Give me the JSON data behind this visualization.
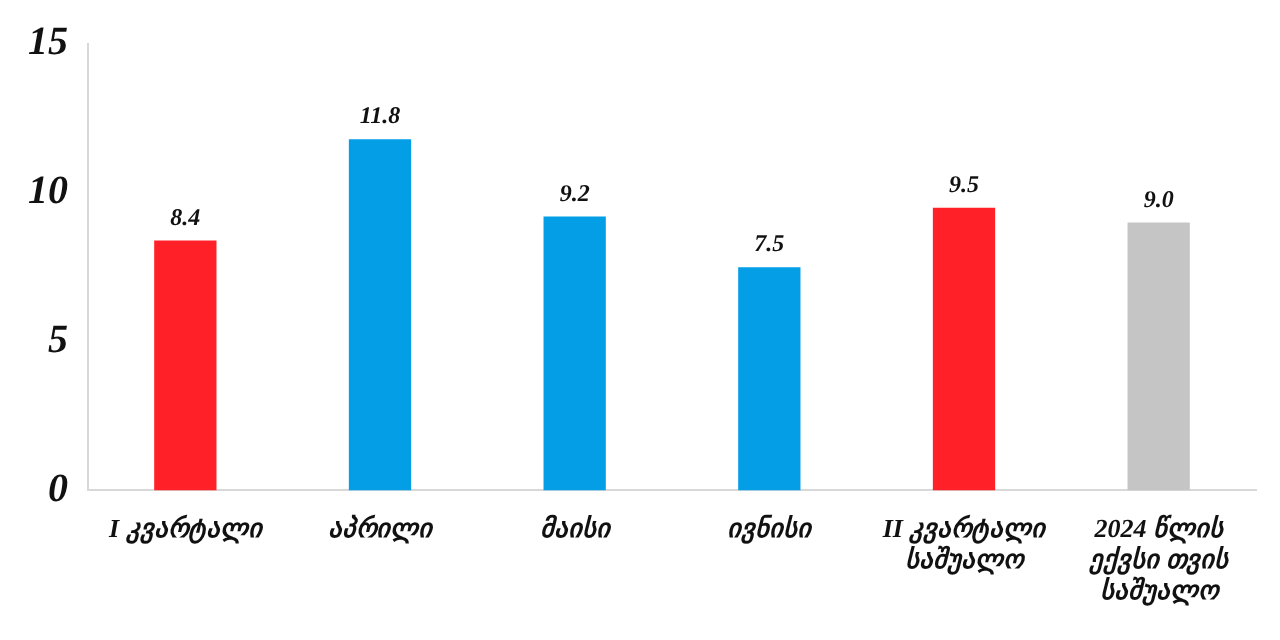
{
  "chart_data": {
    "type": "bar",
    "categories": [
      "I კვარტალი",
      "აპრილი",
      "მაისი",
      "ივნისი",
      "II კვარტალი საშუალო",
      "2024 წლის ექვსი თვის საშუალო"
    ],
    "values": [
      8.4,
      11.8,
      9.2,
      7.5,
      9.5,
      9.0
    ],
    "colors": [
      "#ff2127",
      "#039ee6",
      "#039ee6",
      "#039ee6",
      "#ff2127",
      "#c5c5c5"
    ],
    "value_labels": [
      "8.4",
      "11.8",
      "9.2",
      "7.5",
      "9.5",
      "9.0"
    ],
    "ylim": [
      0,
      15
    ],
    "yticks": [
      0,
      5,
      10,
      15
    ],
    "grid": false,
    "legend": false
  }
}
